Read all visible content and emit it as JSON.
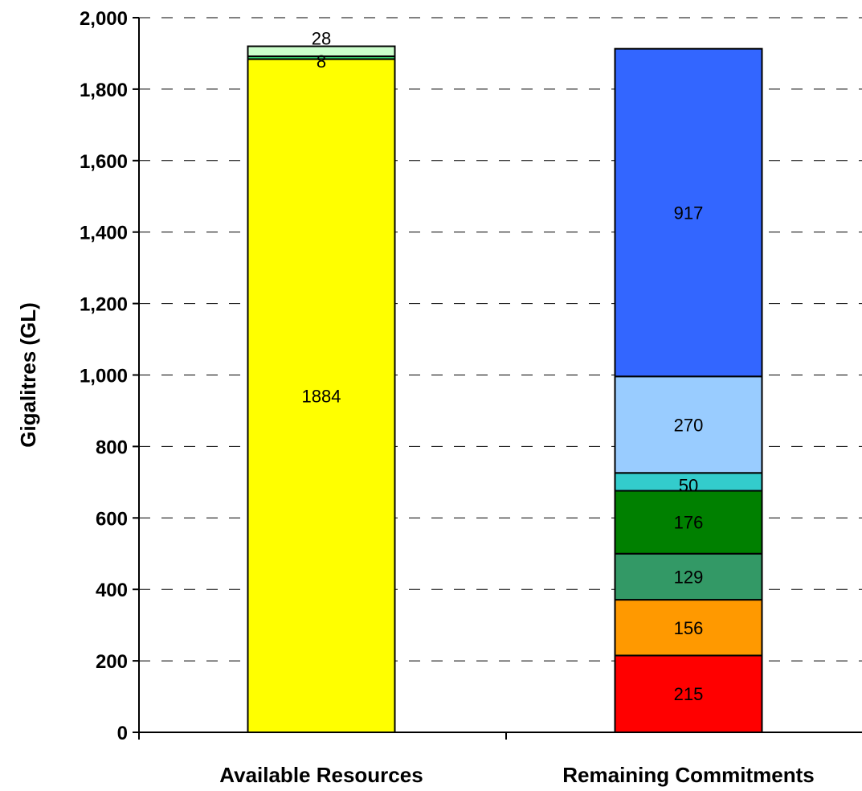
{
  "chart_data": {
    "type": "bar",
    "stacked": true,
    "categories": [
      "Available Resources",
      "Remaining Commitments"
    ],
    "ylabel": "Gigalitres (GL)",
    "ylim": [
      0,
      2000
    ],
    "yticks": [
      0,
      200,
      400,
      600,
      800,
      1000,
      1200,
      1400,
      1600,
      1800,
      2000
    ],
    "ytick_labels": [
      "0",
      "200",
      "400",
      "600",
      "800",
      "1,000",
      "1,200",
      "1,400",
      "1,600",
      "1,800",
      "2,000"
    ],
    "grid": "horizontal dashed",
    "bars": [
      {
        "category": "Available Resources",
        "segments": [
          {
            "value": 1884,
            "label": "1884",
            "color": "#ffff00"
          },
          {
            "value": 8,
            "label": "8",
            "color": "#33cc66"
          },
          {
            "value": 28,
            "label": "28",
            "color": "#ccffcc"
          }
        ]
      },
      {
        "category": "Remaining Commitments",
        "segments": [
          {
            "value": 215,
            "label": "215",
            "color": "#ff0000"
          },
          {
            "value": 156,
            "label": "156",
            "color": "#ff9900"
          },
          {
            "value": 129,
            "label": "129",
            "color": "#339966"
          },
          {
            "value": 176,
            "label": "176",
            "color": "#008000"
          },
          {
            "value": 50,
            "label": "50",
            "color": "#33cccc"
          },
          {
            "value": 270,
            "label": "270",
            "color": "#99ccff"
          },
          {
            "value": 917,
            "label": "917",
            "color": "#3366ff"
          }
        ]
      }
    ]
  }
}
